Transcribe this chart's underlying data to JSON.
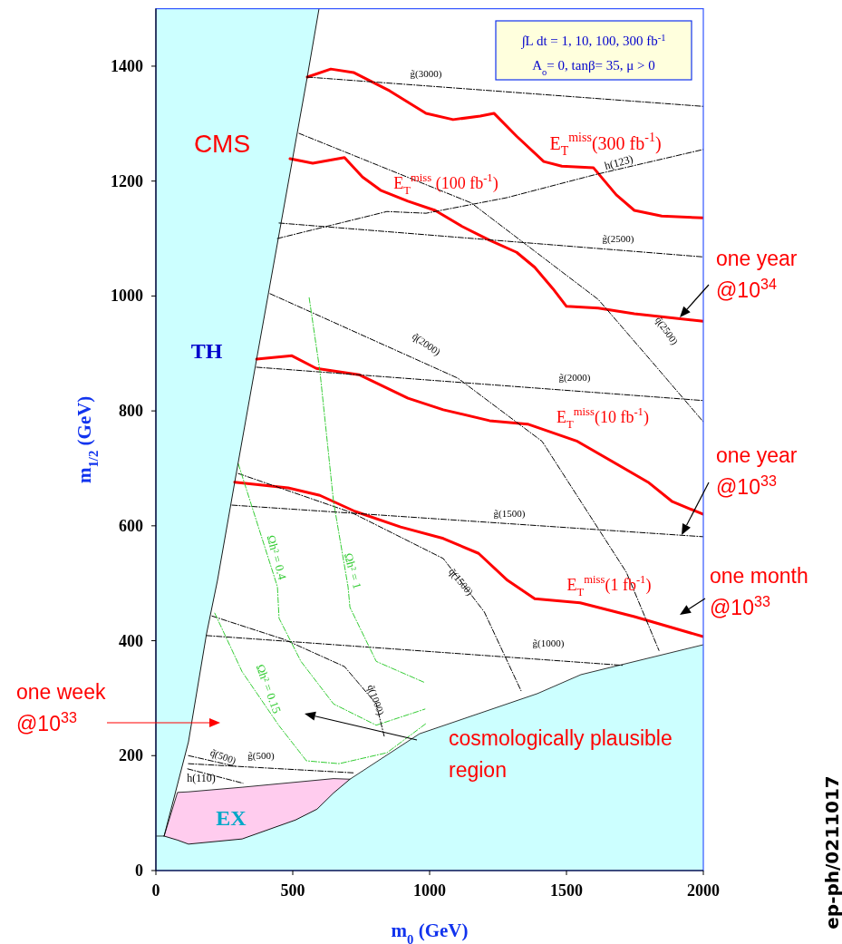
{
  "chart_data": {
    "type": "line",
    "xlabel": "m$_{0}$  (GeV)",
    "ylabel": "m$_{1/2}$ (GeV)",
    "xlim": [
      0,
      2000
    ],
    "ylim": [
      0,
      1500
    ],
    "xticks": [
      0,
      500,
      1000,
      1500,
      2000
    ],
    "yticks": [
      0,
      200,
      400,
      600,
      800,
      1000,
      1200,
      1400
    ],
    "annotations": [
      "CMS",
      "TH",
      "EX",
      "∫L dt = 1, 10, 100, 300 fb$^{-1}$",
      "A$_{o}$= 0, tanβ= 35, μ > 0",
      "ep-ph/0211017",
      "one year\n@10$^{34}$",
      "one year\n@10$^{33}$",
      "one month\n@10$^{33}$",
      "one week\n@10$^{33}$",
      "cosmologically plausible\nregion"
    ],
    "series": [
      {
        "name": "E$_{T}$$^{miss}$(300 fb$^{-1}$)",
        "color": "#ff0000",
        "line_style": "solid",
        "x": [
          553,
          639,
          722,
          854,
          987,
          1086,
          1185,
          1235,
          1318,
          1417,
          1483,
          1599,
          1682,
          1748,
          1848,
          2000
        ],
        "values": [
          1381,
          1395,
          1389,
          1357,
          1318,
          1307,
          1313,
          1318,
          1278,
          1234,
          1226,
          1223,
          1176,
          1149,
          1139,
          1136
        ]
      },
      {
        "name": "E$_{T}$$^{miss}$ (100 fb$^{-1}$)",
        "color": "#ff0000",
        "line_style": "solid",
        "x": [
          490,
          573,
          689,
          755,
          821,
          921,
          1020,
          1119,
          1219,
          1318,
          1384,
          1450,
          1500,
          1616,
          1748,
          2000
        ],
        "values": [
          1239,
          1231,
          1241,
          1207,
          1184,
          1165,
          1149,
          1121,
          1097,
          1076,
          1050,
          1013,
          982,
          979,
          969,
          956
        ]
      },
      {
        "name": "E$_{T}$$^{miss}$(10 fb$^{-1}$)",
        "color": "#ff0000",
        "line_style": "solid",
        "x": [
          368,
          497,
          586,
          742,
          921,
          1050,
          1219,
          1358,
          1540,
          1798,
          1887,
          2000
        ],
        "values": [
          890,
          896,
          874,
          863,
          822,
          802,
          783,
          777,
          747,
          676,
          642,
          620
        ]
      },
      {
        "name": "E$_{T}$$^{miss}$(1 fb$^{-1}$)",
        "color": "#ff0000",
        "line_style": "solid",
        "x": [
          288,
          483,
          599,
          728,
          894,
          1050,
          1179,
          1285,
          1384,
          1550,
          1748,
          2000
        ],
        "values": [
          676,
          666,
          653,
          625,
          598,
          578,
          552,
          505,
          473,
          466,
          442,
          407
        ]
      },
      {
        "name": "g̃(3000)",
        "color": "#000000",
        "line_style": "dashed",
        "x": [
          553,
          2000
        ],
        "values": [
          1381,
          1330
        ]
      },
      {
        "name": "g̃(2500)",
        "color": "#000000",
        "line_style": "dashed",
        "x": [
          450,
          2000
        ],
        "values": [
          1127,
          1068
        ]
      },
      {
        "name": "g̃(2000)",
        "color": "#000000",
        "line_style": "dashed",
        "x": [
          368,
          2000
        ],
        "values": [
          876,
          818
        ]
      },
      {
        "name": "g̃(1500)",
        "color": "#000000",
        "line_style": "dashed",
        "x": [
          278,
          2000
        ],
        "values": [
          636,
          581
        ]
      },
      {
        "name": "g̃(1000)",
        "color": "#000000",
        "line_style": "dashed",
        "x": [
          185,
          1709
        ],
        "values": [
          409,
          357
        ]
      },
      {
        "name": "g̃(500)",
        "color": "#000000",
        "line_style": "dashed",
        "x": [
          119,
          725
        ],
        "values": [
          186,
          170
        ]
      },
      {
        "name": "h(123)",
        "color": "#000000",
        "line_style": "dashed",
        "x": [
          444,
          844,
          987,
          1281,
          1603,
          2000
        ],
        "values": [
          1100,
          1147,
          1144,
          1171,
          1211,
          1255
        ]
      },
      {
        "name": "h(110)",
        "color": "#000000",
        "line_style": "dashed",
        "x": [
          116,
          318
        ],
        "values": [
          177,
          152
        ]
      },
      {
        "name": "q̃(2500)",
        "color": "#000000",
        "line_style": "dashed",
        "x": [
          523,
          1152,
          1616,
          1815,
          2000
        ],
        "values": [
          1283,
          1162,
          994,
          884,
          781
        ]
      },
      {
        "name": "q̃(2000)",
        "color": "#000000",
        "line_style": "dashed",
        "x": [
          417,
          1103,
          1411,
          1719,
          1838
        ],
        "values": [
          1004,
          857,
          747,
          519,
          383
        ]
      },
      {
        "name": "q̃(1500)",
        "color": "#000000",
        "line_style": "dashed",
        "x": [
          301,
          715,
          1050,
          1200,
          1334
        ],
        "values": [
          691,
          623,
          543,
          450,
          313
        ]
      },
      {
        "name": "q̃(1000)",
        "color": "#000000",
        "line_style": "dashed",
        "x": [
          205,
          470,
          689,
          805,
          834
        ],
        "values": [
          443,
          402,
          355,
          290,
          234
        ]
      },
      {
        "name": "q̃(500)",
        "color": "#000000",
        "line_style": "dashed",
        "x": [
          119,
          295
        ],
        "values": [
          200,
          181
        ]
      },
      {
        "name": "Ωh² = 0.4",
        "color": "#33cc33",
        "line_style": "dashed",
        "x": [
          301,
          444,
          450,
          530,
          649,
          805,
          983
        ],
        "values": [
          708,
          494,
          439,
          364,
          290,
          253,
          281
        ]
      },
      {
        "name": "Ωh² = 1",
        "color": "#33cc33",
        "line_style": "dashed",
        "x": [
          560,
          599,
          649,
          702,
          709,
          805,
          983
        ],
        "values": [
          997,
          870,
          642,
          494,
          458,
          364,
          327
        ]
      },
      {
        "name": "Ωh² = 0.15",
        "color": "#33cc33",
        "line_style": "dashed",
        "x": [
          215,
          315,
          450,
          550,
          669,
          844,
          990
        ],
        "values": [
          448,
          346,
          252,
          191,
          186,
          205,
          257
        ]
      },
      {
        "color": "#000000",
        "line_style": "solid",
        "x": [
          30,
          79,
          119,
          185,
          225,
          288,
          368,
          553,
          596
        ],
        "values": [
          60,
          150,
          224,
          412,
          505,
          676,
          890,
          1381,
          1500
        ]
      },
      {
        "type": "area",
        "color": "#ccffff",
        "x": [
          0,
          30,
          79,
          119,
          315,
          649,
          709,
          963,
          1394,
          1553,
          2000
        ],
        "values": [
          60,
          60,
          136,
          137,
          145,
          160,
          159,
          238,
          308,
          341,
          393
        ]
      },
      {
        "color": "#000000",
        "line_style": "solid",
        "x": [
          30,
          79,
          119,
          315,
          510,
          589,
          649,
          709
        ],
        "values": [
          60,
          53,
          46,
          55,
          88,
          107,
          135,
          159
        ]
      }
    ]
  }
}
